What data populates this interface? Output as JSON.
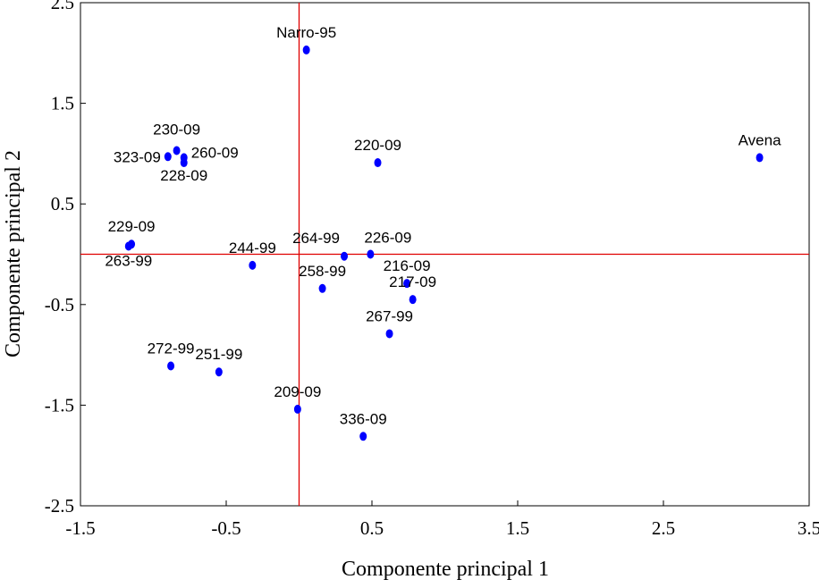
{
  "chart_data": {
    "type": "scatter",
    "title": "",
    "xlabel": "Componente principal 1",
    "ylabel": "Componente principal 2",
    "xlim": [
      -1.5,
      3.5
    ],
    "ylim": [
      -2.5,
      2.5
    ],
    "xticks": [
      "-1.5",
      "-0.5",
      "0.5",
      "1.5",
      "2.5",
      "3.5"
    ],
    "yticks": [
      "-2.5",
      "-1.5",
      "-0.5",
      "0.5",
      "1.5",
      "2.5"
    ],
    "grid": false,
    "reference_lines": {
      "x": 0,
      "y": 0,
      "color": "#e00000"
    },
    "point_color": "#0000ff",
    "points": [
      {
        "label": "Narro-95",
        "x": 0.05,
        "y": 2.03
      },
      {
        "label": "Avena",
        "x": 3.16,
        "y": 0.96
      },
      {
        "label": "220-09",
        "x": 0.54,
        "y": 0.91
      },
      {
        "label": "323-09",
        "x": -0.9,
        "y": 0.97
      },
      {
        "label": "230-09",
        "x": -0.84,
        "y": 1.03
      },
      {
        "label": "260-09",
        "x": -0.79,
        "y": 0.96
      },
      {
        "label": "228-09",
        "x": -0.79,
        "y": 0.91
      },
      {
        "label": "263-99",
        "x": -1.17,
        "y": 0.08
      },
      {
        "label": "229-09",
        "x": -1.15,
        "y": 0.1
      },
      {
        "label": "244-99",
        "x": -0.32,
        "y": -0.11
      },
      {
        "label": "264-99",
        "x": 0.31,
        "y": -0.02
      },
      {
        "label": "226-09",
        "x": 0.49,
        "y": 0.0
      },
      {
        "label": "216-09",
        "x": 0.74,
        "y": -0.29
      },
      {
        "label": "217-09",
        "x": 0.78,
        "y": -0.45
      },
      {
        "label": "258-99",
        "x": 0.16,
        "y": -0.34
      },
      {
        "label": "267-99",
        "x": 0.62,
        "y": -0.79
      },
      {
        "label": "272-99",
        "x": -0.88,
        "y": -1.11
      },
      {
        "label": "251-99",
        "x": -0.55,
        "y": -1.17
      },
      {
        "label": "209-09",
        "x": -0.01,
        "y": -1.54
      },
      {
        "label": "336-09",
        "x": 0.44,
        "y": -1.81
      }
    ]
  }
}
